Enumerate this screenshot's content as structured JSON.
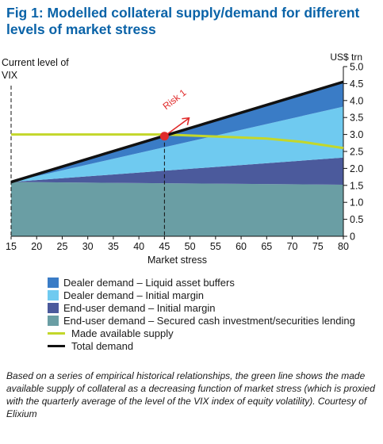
{
  "figure": {
    "title_line1": "Fig 1: Modelled collateral supply/demand for different",
    "title_line2": "levels of market stress",
    "caption": "Based on a series of empirical historical relationships, the green line shows the made available supply of collateral as a decreasing function of market stress (which is proxied with the quarterly average of the level of the VIX index of equity volatility). Courtesy of Elixium"
  },
  "colors": {
    "title": "#0a63a8",
    "liquid_buffers": "#3a7cc6",
    "initial_margin": "#6fcaf0",
    "enduser_margin": "#4b5a9c",
    "secured_cash": "#6a9ea4",
    "supply": "#c3d72b",
    "total": "#111111",
    "risk": "#e02a2a"
  },
  "chart_data": {
    "type": "area",
    "xlabel": "Market stress",
    "ylabel": "US$ trn",
    "x_ticks": [
      15,
      20,
      25,
      30,
      35,
      40,
      45,
      50,
      55,
      60,
      65,
      70,
      75,
      80
    ],
    "y_ticks": [
      "0",
      "0.5",
      "1.0",
      "1.5",
      "2.0",
      "2.5",
      "3.0",
      "3.5",
      "4.0",
      "4.5",
      "5.0"
    ],
    "xlim": [
      15,
      80
    ],
    "ylim": [
      0,
      5.0
    ],
    "y_axis_side": "right",
    "legend_position": "below",
    "stack_order": [
      "End-user demand – Secured cash investment/securities lending",
      "End-user demand – Initial margin",
      "Dealer demand – Initial margin",
      "Dealer demand – Liquid asset buffers"
    ],
    "series": [
      {
        "name": "End-user demand – Secured cash investment/securities lending",
        "kind": "area",
        "color_key": "secured_cash",
        "x": [
          15,
          80
        ],
        "values": [
          1.6,
          1.52
        ]
      },
      {
        "name": "End-user demand – Initial margin",
        "kind": "area",
        "color_key": "enduser_margin",
        "x": [
          15,
          80
        ],
        "values": [
          0.0,
          0.8
        ]
      },
      {
        "name": "Dealer demand – Initial margin",
        "kind": "area",
        "color_key": "initial_margin",
        "x": [
          15,
          80
        ],
        "values": [
          0.0,
          1.5
        ]
      },
      {
        "name": "Dealer demand – Liquid asset buffers",
        "kind": "area",
        "color_key": "liquid_buffers",
        "x": [
          15,
          80
        ],
        "values": [
          0.0,
          0.73
        ]
      },
      {
        "name": "Total demand",
        "kind": "line",
        "color_key": "total",
        "x": [
          15,
          80
        ],
        "values": [
          1.6,
          4.55
        ]
      },
      {
        "name": "Made available supply",
        "kind": "line",
        "color_key": "supply",
        "x": [
          15,
          45,
          55,
          65,
          72,
          80
        ],
        "values": [
          3.0,
          3.0,
          2.94,
          2.88,
          2.78,
          2.6
        ]
      }
    ],
    "annotations": [
      {
        "type": "vline",
        "label": "Current level of VIX",
        "x": 15
      },
      {
        "type": "vline",
        "x": 45
      },
      {
        "type": "point",
        "label": "Risk 1",
        "x": 45,
        "y": 2.95
      }
    ]
  }
}
